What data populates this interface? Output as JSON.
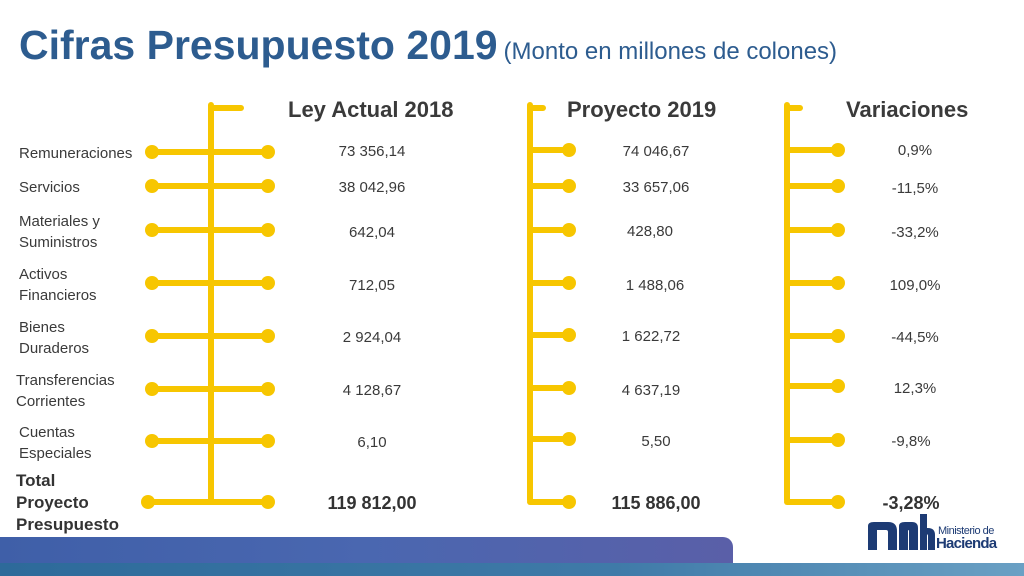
{
  "title": {
    "main": "Cifras Presupuesto 2019",
    "subtitle": "(Monto en millones de colones)"
  },
  "columns": {
    "ley_actual": "Ley Actual  2018",
    "proyecto": "Proyecto 2019",
    "variaciones": "Variaciones"
  },
  "rows": [
    {
      "label_line1": "Remuneraciones",
      "label_line2": "",
      "ley": "73 356,14",
      "proyecto": "74 046,67",
      "variacion": "0,9%"
    },
    {
      "label_line1": "Servicios",
      "label_line2": "",
      "ley": "38 042,96",
      "proyecto": "33 657,06",
      "variacion": "-11,5%"
    },
    {
      "label_line1": "Materiales y",
      "label_line2": "Suministros",
      "ley": "642,04",
      "proyecto": "428,80",
      "variacion": "-33,2%"
    },
    {
      "label_line1": "Activos",
      "label_line2": "Financieros",
      "ley": "712,05",
      "proyecto": "1 488,06",
      "variacion": "109,0%"
    },
    {
      "label_line1": "Bienes",
      "label_line2": "Duraderos",
      "ley": "2 924,04",
      "proyecto": "1 622,72",
      "variacion": "-44,5%"
    },
    {
      "label_line1": "Transferencias",
      "label_line2": "Corrientes",
      "ley": "4 128,67",
      "proyecto": "4 637,19",
      "variacion": "12,3%"
    },
    {
      "label_line1": "Cuentas",
      "label_line2": "Especiales",
      "ley": "6,10",
      "proyecto": "5,50",
      "variacion": "-9,8%"
    }
  ],
  "total": {
    "label_line1": "Total",
    "label_line2": "Proyecto",
    "label_line3": "Presupuesto",
    "ley": "119 812,00",
    "proyecto": "115 886,00",
    "variacion": "-3,28%"
  },
  "logo": {
    "line1": "Ministerio de",
    "line2": "Hacienda",
    "mark_color": "#1d3b74"
  },
  "colors": {
    "title": "#2d5c8f",
    "connector": "#f7c600"
  }
}
